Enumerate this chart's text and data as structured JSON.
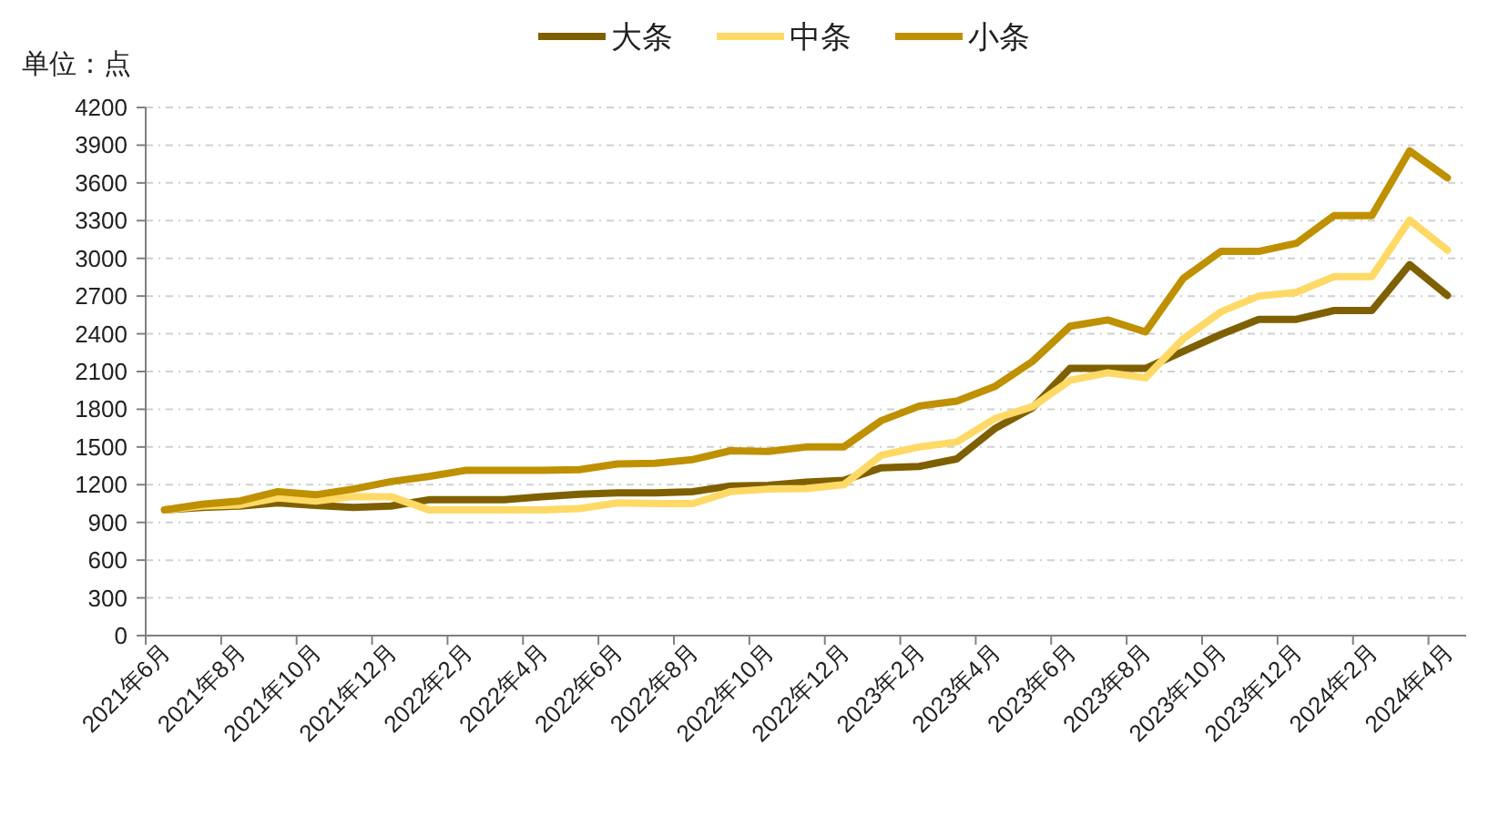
{
  "chart_data": {
    "type": "line",
    "ylabel": "单位：点",
    "categories": [
      "2021年6月",
      null,
      "2021年8月",
      null,
      "2021年10月",
      null,
      "2021年12月",
      null,
      "2022年2月",
      null,
      "2022年4月",
      null,
      "2022年6月",
      null,
      "2022年8月",
      null,
      "2022年10月",
      null,
      "2022年12月",
      null,
      "2023年2月",
      null,
      "2023年4月",
      null,
      "2023年6月",
      null,
      "2023年8月",
      null,
      "2023年10月",
      null,
      "2023年12月",
      null,
      "2024年2月",
      null,
      "2024年4月"
    ],
    "series": [
      {
        "name": "大条",
        "color": "#7f6000",
        "values": [
          1000,
          1020,
          1030,
          1055,
          1035,
          1020,
          1030,
          1080,
          1080,
          1080,
          1105,
          1125,
          1135,
          1135,
          1145,
          1190,
          1195,
          1220,
          1235,
          1335,
          1345,
          1405,
          1645,
          1810,
          2125,
          2125,
          2125,
          2260,
          2395,
          2515,
          2515,
          2585,
          2585,
          2950,
          2705
        ]
      },
      {
        "name": "中条",
        "color": "#ffd966",
        "values": [
          1000,
          1030,
          1040,
          1095,
          1070,
          1105,
          1105,
          1000,
          1000,
          1000,
          1000,
          1010,
          1055,
          1050,
          1050,
          1145,
          1165,
          1170,
          1200,
          1435,
          1500,
          1540,
          1725,
          1820,
          2030,
          2090,
          2050,
          2360,
          2575,
          2700,
          2730,
          2855,
          2855,
          3305,
          3065
        ]
      },
      {
        "name": "小条",
        "color": "#bf9000",
        "values": [
          1000,
          1045,
          1070,
          1145,
          1120,
          1165,
          1225,
          1265,
          1315,
          1315,
          1315,
          1320,
          1365,
          1370,
          1400,
          1470,
          1465,
          1500,
          1500,
          1710,
          1825,
          1865,
          1980,
          2180,
          2460,
          2510,
          2415,
          2840,
          3055,
          3055,
          3120,
          3340,
          3340,
          3855,
          3640
        ]
      }
    ],
    "ylim": [
      0,
      4200
    ],
    "yticks": [
      0,
      300,
      600,
      900,
      1200,
      1500,
      1800,
      2100,
      2400,
      2700,
      3000,
      3300,
      3600,
      3900,
      4200
    ],
    "grid": "y",
    "legend": "top",
    "line_style": "solid",
    "marker": "none"
  }
}
